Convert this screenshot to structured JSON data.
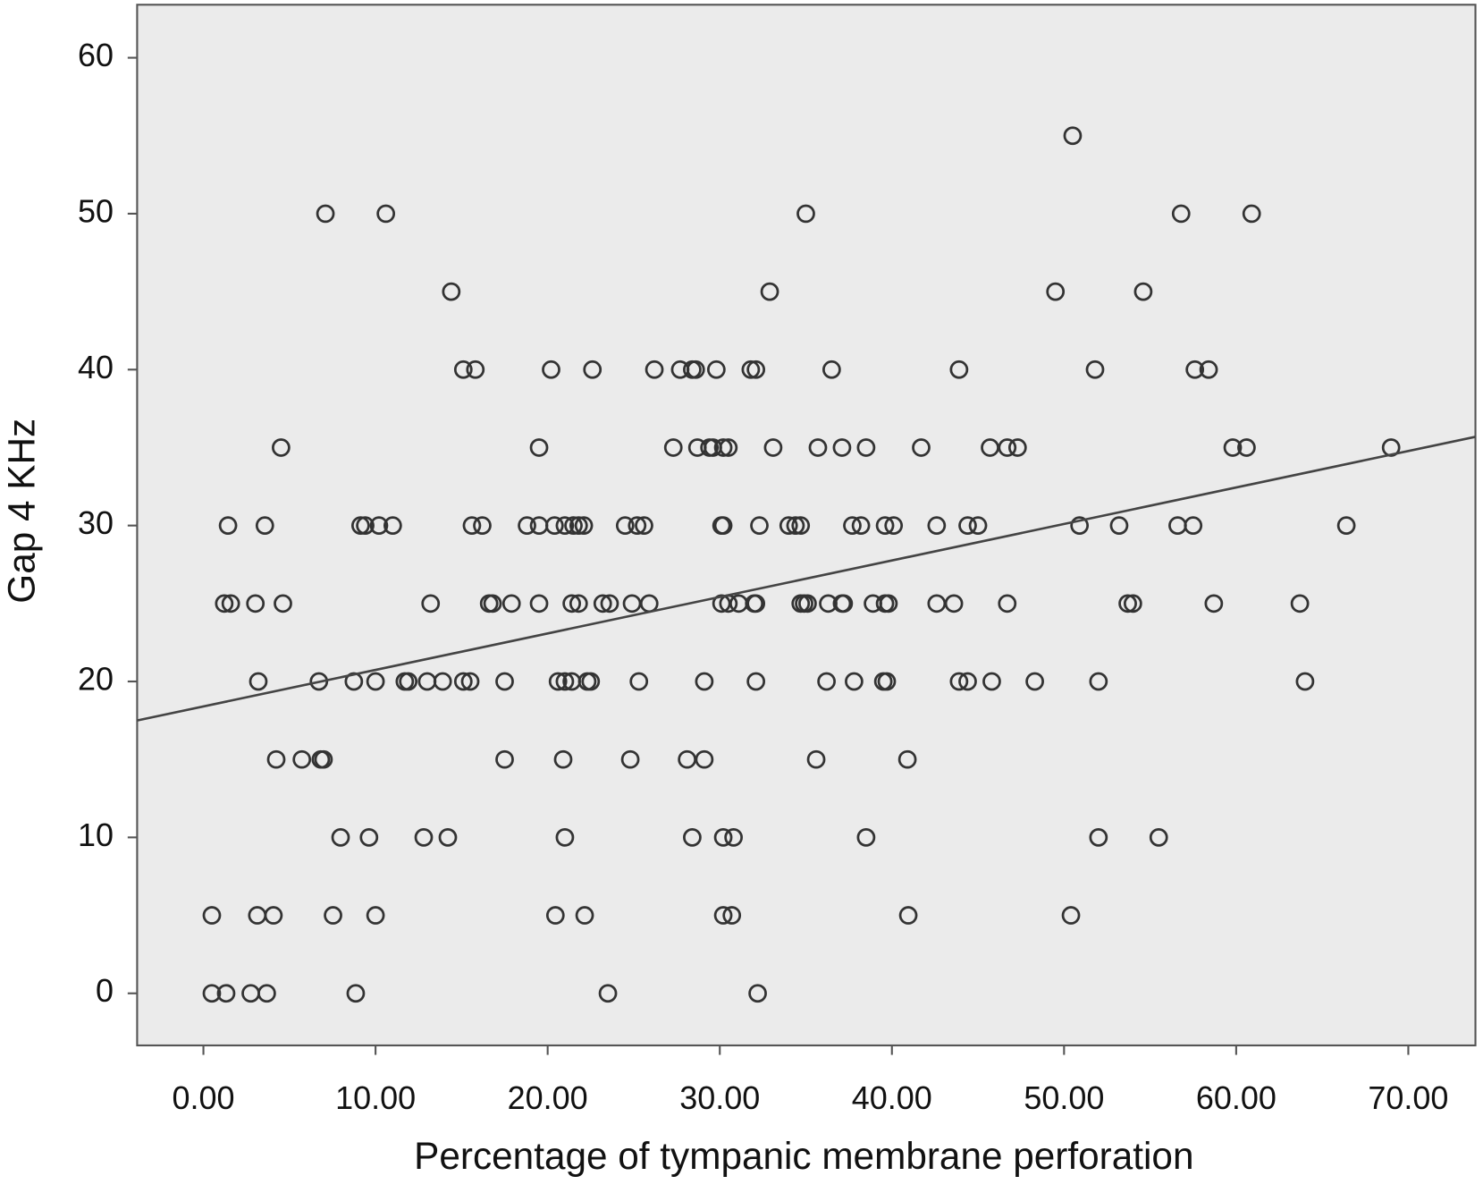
{
  "chart_data": {
    "type": "scatter",
    "xlabel": "Percentage of tympanic membrane perforation",
    "ylabel": "Gap 4 KHz",
    "xlim": [
      -3.85,
      73.9
    ],
    "ylim": [
      -3.34,
      63.4
    ],
    "xticks": [
      {
        "value": 0,
        "label": "0.00"
      },
      {
        "value": 10,
        "label": "10.00"
      },
      {
        "value": 20,
        "label": "20.00"
      },
      {
        "value": 30,
        "label": "30.00"
      },
      {
        "value": 40,
        "label": "40.00"
      },
      {
        "value": 50,
        "label": "50.00"
      },
      {
        "value": 60,
        "label": "60.00"
      },
      {
        "value": 70,
        "label": "70.00"
      }
    ],
    "yticks": [
      0,
      10,
      20,
      30,
      40,
      50,
      60
    ],
    "color": "#333333",
    "fit_line": {
      "intercept": 18.4,
      "slope": 0.234,
      "color": "#444444"
    },
    "x": [
      0.49,
      1.32,
      2.75,
      3.68,
      8.85,
      23.5,
      32.2,
      0.49,
      3.13,
      4.07,
      7.53,
      10.0,
      20.45,
      22.15,
      30.2,
      30.7,
      40.95,
      50.4,
      7.97,
      9.62,
      12.8,
      14.2,
      21.0,
      28.4,
      30.2,
      30.8,
      38.5,
      52.0,
      55.5,
      4.23,
      5.72,
      6.82,
      6.98,
      17.5,
      20.9,
      24.8,
      28.1,
      29.1,
      35.6,
      40.9,
      3.19,
      6.71,
      8.74,
      10.0,
      11.7,
      11.9,
      13.0,
      13.9,
      15.1,
      15.5,
      17.5,
      20.6,
      21.0,
      21.4,
      22.3,
      22.5,
      25.3,
      29.1,
      32.1,
      36.2,
      37.8,
      39.5,
      39.7,
      43.9,
      44.4,
      45.8,
      48.3,
      52.0,
      64.0,
      1.21,
      1.59,
      3.02,
      4.62,
      13.2,
      16.6,
      16.8,
      17.9,
      19.5,
      21.4,
      21.8,
      23.2,
      23.6,
      24.9,
      25.9,
      30.1,
      30.5,
      31.1,
      32.0,
      32.1,
      34.7,
      34.9,
      35.1,
      36.3,
      37.1,
      37.2,
      38.9,
      39.6,
      39.8,
      42.6,
      43.6,
      46.7,
      53.7,
      54.0,
      58.7,
      63.7,
      1.43,
      3.57,
      9.13,
      9.4,
      10.2,
      11.0,
      15.6,
      16.2,
      18.8,
      19.5,
      20.4,
      21.0,
      21.5,
      21.8,
      22.1,
      24.5,
      25.2,
      25.6,
      30.1,
      30.2,
      32.3,
      34.0,
      34.4,
      34.7,
      37.7,
      38.2,
      39.6,
      40.1,
      42.6,
      44.4,
      45.0,
      50.9,
      53.2,
      56.6,
      57.5,
      66.4,
      4.51,
      19.5,
      27.3,
      28.7,
      29.4,
      29.6,
      30.2,
      30.5,
      33.1,
      35.7,
      37.1,
      38.5,
      41.7,
      45.7,
      46.7,
      47.3,
      59.8,
      60.6,
      69.0,
      15.1,
      15.8,
      20.2,
      22.6,
      26.2,
      27.7,
      28.4,
      28.6,
      29.8,
      31.8,
      32.1,
      36.5,
      43.9,
      51.8,
      57.6,
      58.4,
      14.4,
      32.9,
      49.5,
      54.6,
      7.09,
      10.6,
      35.0,
      56.8,
      60.9,
      50.5
    ],
    "values": [
      0,
      0,
      0,
      0,
      0,
      0,
      0,
      5,
      5,
      5,
      5,
      5,
      5,
      5,
      5,
      5,
      5,
      5,
      10,
      10,
      10,
      10,
      10,
      10,
      10,
      10,
      10,
      10,
      10,
      15,
      15,
      15,
      15,
      15,
      15,
      15,
      15,
      15,
      15,
      15,
      20,
      20,
      20,
      20,
      20,
      20,
      20,
      20,
      20,
      20,
      20,
      20,
      20,
      20,
      20,
      20,
      20,
      20,
      20,
      20,
      20,
      20,
      20,
      20,
      20,
      20,
      20,
      20,
      20,
      25,
      25,
      25,
      25,
      25,
      25,
      25,
      25,
      25,
      25,
      25,
      25,
      25,
      25,
      25,
      25,
      25,
      25,
      25,
      25,
      25,
      25,
      25,
      25,
      25,
      25,
      25,
      25,
      25,
      25,
      25,
      25,
      25,
      25,
      25,
      25,
      30,
      30,
      30,
      30,
      30,
      30,
      30,
      30,
      30,
      30,
      30,
      30,
      30,
      30,
      30,
      30,
      30,
      30,
      30,
      30,
      30,
      30,
      30,
      30,
      30,
      30,
      30,
      30,
      30,
      30,
      30,
      30,
      30,
      30,
      30,
      30,
      35,
      35,
      35,
      35,
      35,
      35,
      35,
      35,
      35,
      35,
      35,
      35,
      35,
      35,
      35,
      35,
      35,
      35,
      35,
      40,
      40,
      40,
      40,
      40,
      40,
      40,
      40,
      40,
      40,
      40,
      40,
      40,
      40,
      40,
      40,
      45,
      45,
      45,
      45,
      50,
      50,
      50,
      50,
      50,
      55
    ]
  }
}
